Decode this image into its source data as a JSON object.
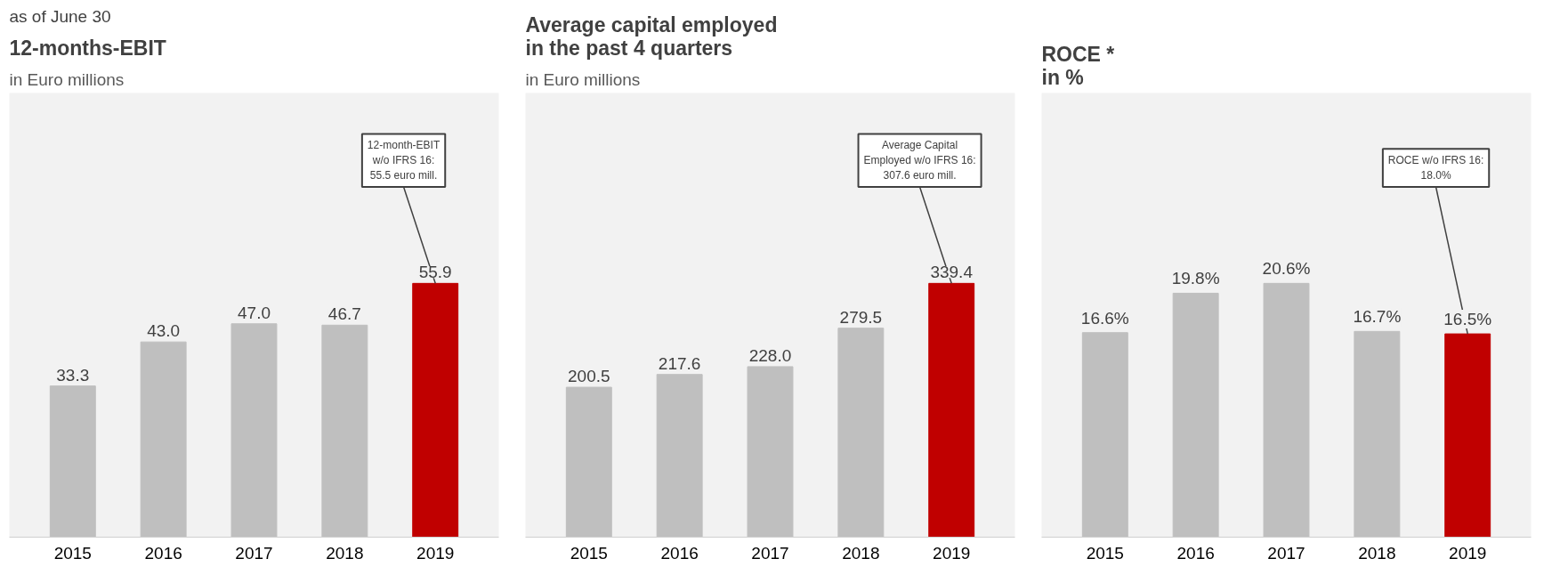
{
  "chart_data": [
    {
      "type": "bar",
      "title": "12-months-EBIT",
      "subtitle": "in Euro millions",
      "categories": [
        "2015",
        "2016",
        "2017",
        "2018",
        "2019"
      ],
      "values": [
        33.3,
        43.0,
        47.0,
        46.7,
        55.9
      ],
      "colors": [
        "#bfbfbf",
        "#bfbfbf",
        "#bfbfbf",
        "#bfbfbf",
        "#c00000"
      ],
      "value_labels": [
        "33.3",
        "43.0",
        "47.0",
        "46.7",
        "55.9"
      ],
      "grid": false,
      "annotations": [
        "as of June 30",
        {
          "text": "12-month-EBIT\nw/o IFRS 16:\n55.5 euro mill.",
          "x": "2019",
          "y": 55.9
        }
      ]
    },
    {
      "type": "bar",
      "title": "Average capital employed\nin the past 4 quarters",
      "subtitle": "in Euro millions",
      "categories": [
        "2015",
        "2016",
        "2017",
        "2018",
        "2019"
      ],
      "values": [
        200.5,
        217.6,
        228.0,
        279.5,
        339.4
      ],
      "colors": [
        "#bfbfbf",
        "#bfbfbf",
        "#bfbfbf",
        "#bfbfbf",
        "#c00000"
      ],
      "value_labels": [
        "200.5",
        "217.6",
        "228.0",
        "279.5",
        "339.4"
      ],
      "grid": false,
      "annotations": [
        {
          "text": "Average Capital\nEmployed w/o IFRS 16:\n307.6 euro mill.",
          "x": "2019",
          "y": 339.4
        }
      ]
    },
    {
      "type": "bar",
      "title": "ROCE *\nin %",
      "categories": [
        "2015",
        "2016",
        "2017",
        "2018",
        "2019"
      ],
      "values": [
        16.6,
        19.8,
        20.6,
        16.7,
        16.5
      ],
      "colors": [
        "#bfbfbf",
        "#bfbfbf",
        "#bfbfbf",
        "#bfbfbf",
        "#c00000"
      ],
      "value_labels": [
        "16.6%",
        "19.8%",
        "20.6%",
        "16.7%",
        "16.5%"
      ],
      "grid": false,
      "annotations": [
        {
          "text": "ROCE w/o IFRS 16:\n18.0%",
          "x": "2019",
          "y": 16.5
        }
      ]
    }
  ]
}
